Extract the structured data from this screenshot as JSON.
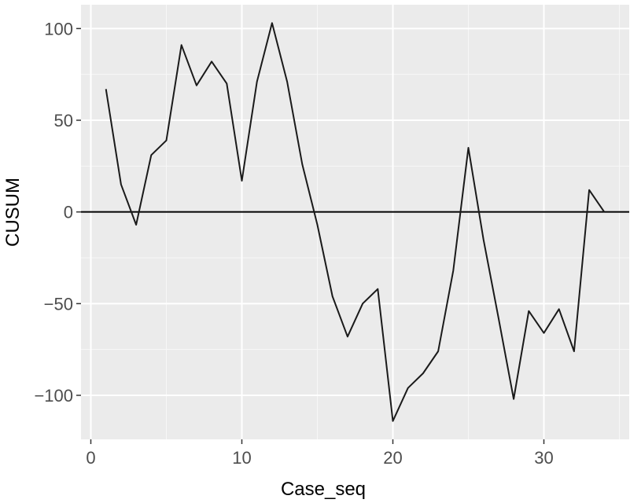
{
  "chart_data": {
    "type": "line",
    "title": "",
    "xlabel": "Case_seq",
    "ylabel": "CUSUM",
    "xlim": [
      -0.65,
      35.65
    ],
    "ylim": [
      -124,
      113
    ],
    "x_ticks": [
      0,
      10,
      20,
      30
    ],
    "y_ticks": [
      100,
      50,
      0,
      -50,
      -100
    ],
    "x_tick_labels": [
      "0",
      "10",
      "20",
      "30"
    ],
    "y_tick_labels": [
      "100",
      "50",
      "0",
      "−50",
      "−100"
    ],
    "grid": true,
    "legend": "none",
    "reference_line": {
      "y": 0
    },
    "series": [
      {
        "x": [
          1,
          2,
          3,
          4,
          5,
          6,
          7,
          8,
          9,
          10,
          11,
          12,
          13,
          14,
          15,
          16,
          17,
          18,
          19,
          20,
          21,
          22,
          23,
          24,
          25,
          26,
          27,
          28,
          29,
          30,
          31,
          32,
          33,
          34
        ],
        "values": [
          67,
          15,
          -7,
          31,
          39,
          91,
          69,
          82,
          70,
          17,
          71,
          103,
          71,
          26,
          -7,
          -46,
          -68,
          -50,
          -42,
          -114,
          -96,
          -88,
          -76,
          -32,
          35,
          -15,
          -58,
          -102,
          -54,
          -66,
          -53,
          -76,
          12,
          0
        ]
      }
    ],
    "colors": {
      "panel_background": "#ebebeb",
      "grid_major": "#ffffff",
      "line": "#1a1a1a",
      "reference_line": "#000000"
    }
  }
}
